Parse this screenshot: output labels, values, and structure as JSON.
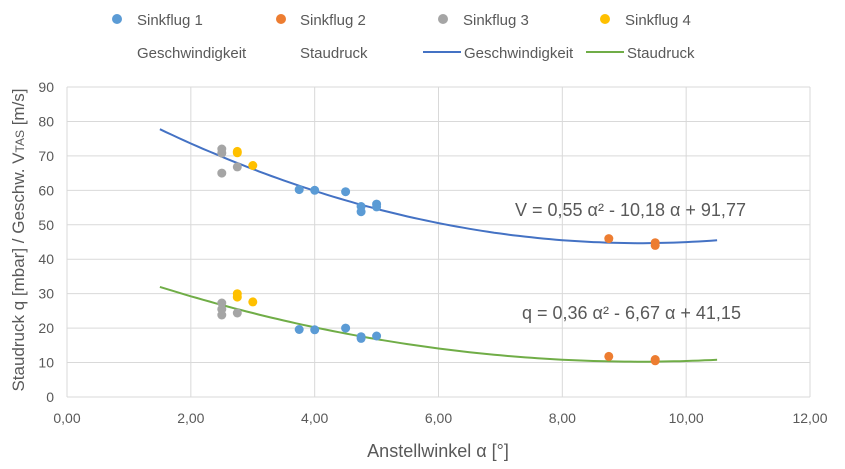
{
  "chart_data": {
    "type": "scatter",
    "xlabel": "Anstellwinkel α [°]",
    "ylabel": "Staudruck q [mbar] / Geschw. V",
    "ylabel_sub": "TAS",
    "ylabel_suffix": " [m/s]",
    "xlim": [
      0,
      12
    ],
    "ylim": [
      0,
      90
    ],
    "x_ticks": [
      "0,00",
      "2,00",
      "4,00",
      "6,00",
      "8,00",
      "10,00",
      "12,00"
    ],
    "y_ticks": [
      "0",
      "10",
      "20",
      "30",
      "40",
      "50",
      "60",
      "70",
      "80",
      "90"
    ],
    "grid": true,
    "legend_position": "top",
    "series": [
      {
        "name": "Sinkflug 1",
        "color": "#5b9bd5",
        "points": [
          [
            3.75,
            60.2
          ],
          [
            4.0,
            60.0
          ],
          [
            4.5,
            59.6
          ],
          [
            4.75,
            55.3
          ],
          [
            4.75,
            53.8
          ],
          [
            5.0,
            56.0
          ],
          [
            5.0,
            55.2
          ],
          [
            3.75,
            19.6
          ],
          [
            4.0,
            19.5
          ],
          [
            4.5,
            20.0
          ],
          [
            4.75,
            17.5
          ],
          [
            4.75,
            17.0
          ],
          [
            5.0,
            17.7
          ]
        ]
      },
      {
        "name": "Sinkflug 2",
        "color": "#ed7d31",
        "points": [
          [
            8.75,
            46.0
          ],
          [
            9.5,
            44.8
          ],
          [
            9.5,
            44.0
          ],
          [
            8.75,
            11.8
          ],
          [
            9.5,
            10.9
          ],
          [
            9.5,
            10.5
          ]
        ]
      },
      {
        "name": "Sinkflug 3",
        "color": "#a5a5a5",
        "points": [
          [
            2.5,
            72.0
          ],
          [
            2.5,
            70.8
          ],
          [
            2.5,
            65.0
          ],
          [
            2.75,
            66.8
          ],
          [
            2.5,
            27.3
          ],
          [
            2.5,
            25.5
          ],
          [
            2.5,
            23.8
          ],
          [
            2.75,
            24.4
          ]
        ]
      },
      {
        "name": "Sinkflug 4",
        "color": "#ffc000",
        "points": [
          [
            2.75,
            71.3
          ],
          [
            2.75,
            70.9
          ],
          [
            3.0,
            67.2
          ],
          [
            2.75,
            30.0
          ],
          [
            2.75,
            29.0
          ],
          [
            3.0,
            27.6
          ]
        ]
      }
    ],
    "legend_text_entries": [
      "Geschwindigkeit",
      "Staudruck"
    ],
    "trendlines": [
      {
        "name": "Geschwindigkeit",
        "color": "#4472c4",
        "coeffs": [
          0.55,
          -10.18,
          91.77
        ],
        "x_range": [
          1.5,
          10.5
        ]
      },
      {
        "name": "Staudruck",
        "color": "#70ad47",
        "coeffs": [
          0.36,
          -6.67,
          41.15
        ],
        "x_range": [
          1.5,
          10.5
        ]
      }
    ],
    "annotations": [
      {
        "text": "V = 0,55 α² - 10,18 α + 91,77"
      },
      {
        "text": "q = 0,36 α² - 6,67 α + 41,15"
      }
    ]
  }
}
